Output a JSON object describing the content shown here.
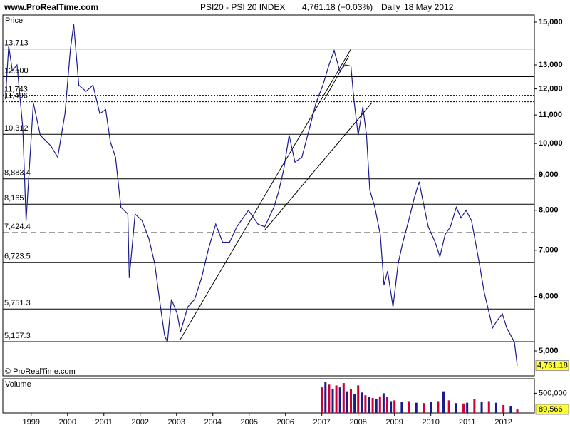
{
  "header": {
    "site": "www.ProRealTime.com",
    "title": "PSI20 - PSI 20 INDEX",
    "last": "4,761.18 (+0.03%)",
    "period": "Daily",
    "date": "18 May 2012"
  },
  "chart_data": [
    {
      "type": "line",
      "panel_label": "Price",
      "footnote": "© ProRealTime.com",
      "log_scale": true,
      "xlim": [
        1998.22,
        2012.85
      ],
      "ylim": [
        4600,
        15360
      ],
      "yticks": [
        {
          "value": 5000,
          "label": "5,000"
        },
        {
          "value": 6000,
          "label": "6,000"
        },
        {
          "value": 7000,
          "label": "7,000"
        },
        {
          "value": 8000,
          "label": "8,000"
        },
        {
          "value": 9000,
          "label": "9,000"
        },
        {
          "value": 10000,
          "label": "10,000"
        },
        {
          "value": 11000,
          "label": "11,000"
        },
        {
          "value": 12000,
          "label": "12,000"
        },
        {
          "value": 13000,
          "label": "13,000"
        },
        {
          "value": 15000,
          "label": "15,000"
        }
      ],
      "levels": [
        {
          "value": 13713,
          "label": "13,713",
          "style": "solid"
        },
        {
          "value": 12500,
          "label": "12,500",
          "style": "solid"
        },
        {
          "value": 11743,
          "label": "11,743",
          "style": "dotted"
        },
        {
          "value": 11496,
          "label": "11,496",
          "style": "dotted"
        },
        {
          "value": 10312,
          "label": "10,312",
          "style": "solid"
        },
        {
          "value": 8883.4,
          "label": "8,883.4",
          "style": "solid"
        },
        {
          "value": 8165,
          "label": "8,165",
          "style": "solid"
        },
        {
          "value": 7424.4,
          "label": "7,424.4",
          "style": "dashed"
        },
        {
          "value": 6723.5,
          "label": "6,723.5",
          "style": "solid"
        },
        {
          "value": 5751.3,
          "label": "5,751.3",
          "style": "solid"
        },
        {
          "value": 5157.3,
          "label": "5,157.3",
          "style": "solid"
        }
      ],
      "last": {
        "value": 4761.18,
        "label": "4,761.18"
      },
      "last_color": "#ffff33",
      "series": [
        {
          "name": "PSI20",
          "color": "#1a1a8c",
          "x": [
            1998.29,
            1998.38,
            1998.48,
            1998.61,
            1998.77,
            1998.86,
            1999.06,
            1999.25,
            1999.54,
            1999.73,
            1999.93,
            2000.08,
            2000.17,
            2000.31,
            2000.51,
            2000.7,
            2000.89,
            2001.05,
            2001.18,
            2001.32,
            2001.47,
            2001.66,
            2001.7,
            2001.86,
            2002.05,
            2002.24,
            2002.4,
            2002.53,
            2002.67,
            2002.75,
            2002.86,
            2003.02,
            2003.11,
            2003.31,
            2003.5,
            2003.69,
            2003.88,
            2004.08,
            2004.27,
            2004.46,
            2004.66,
            2004.98,
            2005.24,
            2005.43,
            2005.68,
            2005.81,
            2005.95,
            2006.1,
            2006.26,
            2006.45,
            2006.64,
            2006.84,
            2007.03,
            2007.19,
            2007.34,
            2007.49,
            2007.65,
            2007.8,
            2007.88,
            2008.0,
            2008.13,
            2008.23,
            2008.32,
            2008.46,
            2008.61,
            2008.71,
            2008.81,
            2008.96,
            2009.1,
            2009.23,
            2009.39,
            2009.54,
            2009.68,
            2009.77,
            2009.93,
            2010.12,
            2010.25,
            2010.39,
            2010.54,
            2010.7,
            2010.83,
            2010.97,
            2011.12,
            2011.32,
            2011.47,
            2011.61,
            2011.7,
            2011.82,
            2011.97,
            2012.09,
            2012.3,
            2012.38
          ],
          "values": [
            11590,
            13860,
            12750,
            13000,
            10530,
            7720,
            11450,
            10280,
            9920,
            9550,
            11050,
            13700,
            14900,
            12150,
            11900,
            12150,
            11050,
            11200,
            10050,
            9550,
            8080,
            7900,
            6380,
            7900,
            7730,
            7275,
            6700,
            5940,
            5270,
            5150,
            5940,
            5660,
            5330,
            5790,
            5940,
            6380,
            7030,
            7640,
            7190,
            7190,
            7570,
            8000,
            7640,
            7570,
            8080,
            8510,
            9160,
            10280,
            9400,
            9550,
            10420,
            11450,
            12150,
            12970,
            13640,
            12750,
            13000,
            12950,
            11600,
            10280,
            11300,
            10280,
            8560,
            8080,
            7370,
            6230,
            6530,
            5790,
            6700,
            7190,
            7730,
            8320,
            8800,
            8320,
            7570,
            7190,
            6850,
            7370,
            7570,
            8080,
            7800,
            8000,
            7730,
            6770,
            6080,
            5660,
            5400,
            5530,
            5660,
            5400,
            5150,
            4761.18
          ]
        }
      ]
    },
    {
      "type": "bar",
      "panel_label": "Volume",
      "xlim": [
        1998.22,
        2012.85
      ],
      "ylim": [
        0,
        870000
      ],
      "xticks": [
        1999,
        2000,
        2001,
        2002,
        2003,
        2004,
        2005,
        2006,
        2007,
        2008,
        2009,
        2010,
        2011,
        2012
      ],
      "yticks": [
        {
          "value": 500000,
          "label": "500,000"
        }
      ],
      "last": {
        "value": 89566,
        "label": "89,566"
      },
      "last_color": "#ffff33",
      "colors": [
        "#cc0033",
        "#1a1a8c"
      ],
      "x": [
        2007.0,
        2007.1,
        2007.2,
        2007.3,
        2007.4,
        2007.5,
        2007.6,
        2007.7,
        2007.8,
        2007.9,
        2008.0,
        2008.1,
        2008.2,
        2008.3,
        2008.4,
        2008.5,
        2008.6,
        2008.7,
        2008.8,
        2008.9,
        2009.0,
        2009.2,
        2009.4,
        2009.6,
        2009.8,
        2010.0,
        2010.2,
        2010.35,
        2010.5,
        2010.7,
        2010.9,
        2011.0,
        2011.2,
        2011.4,
        2011.6,
        2011.8,
        2012.0,
        2012.2,
        2012.38
      ],
      "values": [
        650000,
        780000,
        720000,
        600000,
        700000,
        650000,
        760000,
        550000,
        600000,
        480000,
        700000,
        520000,
        450000,
        400000,
        380000,
        350000,
        420000,
        500000,
        400000,
        300000,
        320000,
        280000,
        300000,
        260000,
        250000,
        280000,
        300000,
        550000,
        320000,
        250000,
        240000,
        260000,
        350000,
        280000,
        300000,
        260000,
        200000,
        180000,
        89566
      ]
    }
  ]
}
